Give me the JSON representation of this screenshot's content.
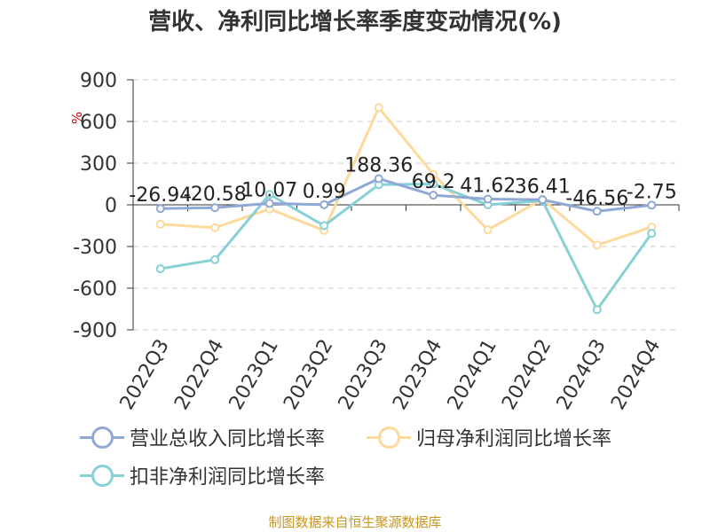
{
  "title": "营收、净利同比增长率季度变动情况(%)",
  "footer": "制图数据来自恒生聚源数据库",
  "colors": {
    "revenue": "#8fa8d6",
    "net_profit": "#fdd99b",
    "deducted_profit": "#86d0d6",
    "axis_label": "#cc0000",
    "grid": "#cccccc",
    "text": "#333333",
    "footer": "#c8961e"
  },
  "chart_data": {
    "type": "line",
    "title": "营收、净利同比增长率季度变动情况(%)",
    "xlabel": "",
    "ylabel": "%",
    "ylim": [
      -900,
      900
    ],
    "yticks": [
      900,
      600,
      300,
      0,
      -300,
      -600,
      -900
    ],
    "grid": true,
    "legend_position": "bottom",
    "categories": [
      "2022Q3",
      "2022Q4",
      "2023Q1",
      "2023Q2",
      "2023Q3",
      "2023Q4",
      "2024Q1",
      "2024Q2",
      "2024Q3",
      "2024Q4"
    ],
    "series": [
      {
        "name": "营业总收入同比增长率",
        "color": "#8fa8d6",
        "values": [
          -26.94,
          -20.58,
          10.07,
          0.99,
          188.36,
          69.2,
          41.62,
          36.41,
          -46.56,
          -2.75
        ],
        "labels": [
          "-26.94",
          "-20.58",
          "10.07",
          "0.99",
          "188.36",
          "69.2",
          "41.62",
          "36.41",
          "-46.56",
          "-2.75"
        ]
      },
      {
        "name": "归母净利润同比增长率",
        "color": "#fdd99b",
        "values": [
          -140,
          -165,
          -30,
          -185,
          700,
          220,
          -180,
          40,
          -290,
          -160
        ]
      },
      {
        "name": "扣非净利润同比增长率",
        "color": "#86d0d6",
        "values": [
          -460,
          -395,
          75,
          -150,
          145,
          150,
          0,
          30,
          -755,
          -205
        ]
      }
    ]
  }
}
